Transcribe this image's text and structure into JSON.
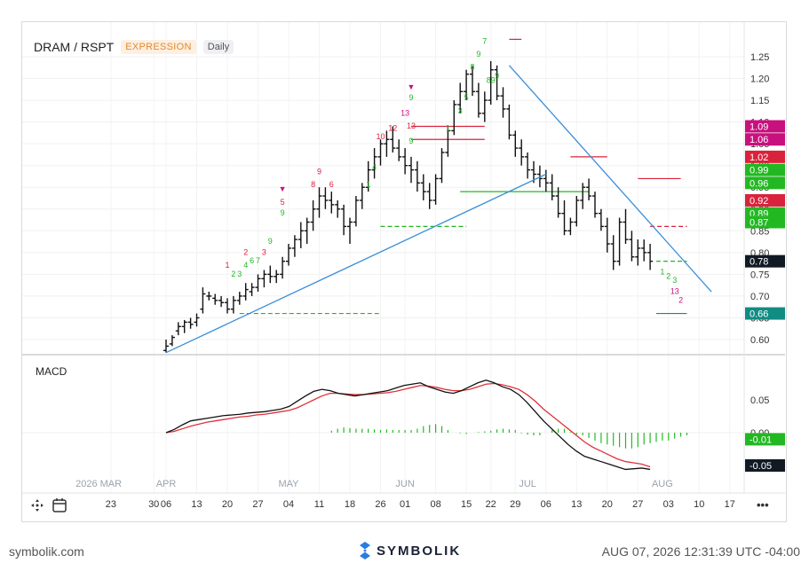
{
  "header": {
    "symbol": "DRAM / RSPT",
    "mode": "EXPRESSION",
    "interval": "Daily"
  },
  "macd_label": "MACD",
  "footer": {
    "site": "symbolik.com",
    "brand": "SYMBOLIK",
    "timestamp": "AUG 07, 2026 12:31:39 UTC -04:00"
  },
  "toolbar": {
    "crosshair_icon": "crosshair-icon",
    "calendar_icon": "calendar-icon",
    "more_icon": "more-icon",
    "more_label": "•••"
  },
  "colors": {
    "up": "#111111",
    "trend": "#3a8fd9",
    "support": "#22aa22",
    "resist": "#dd2244",
    "macd": "#111111",
    "signal": "#e0303a",
    "hist": "#22bb22",
    "label_red": "#d9223c",
    "label_magenta": "#c8107f",
    "label_green": "#22b822",
    "label_dark": "#111a24",
    "label_teal": "#108c82"
  },
  "chart_data": {
    "type": "candlestick",
    "price_axis": {
      "ticks": [
        "1.25",
        "1.20",
        "1.15",
        "1.10",
        "1.05",
        "1.00",
        "0.95",
        "0.90",
        "0.85",
        "0.80",
        "0.75",
        "0.70",
        "0.65",
        "0.60"
      ]
    },
    "price_labels": [
      {
        "text": "1.09",
        "value": 1.09,
        "color": "magenta"
      },
      {
        "text": "1.06",
        "value": 1.06,
        "color": "magenta"
      },
      {
        "text": "1.02",
        "value": 1.02,
        "color": "red"
      },
      {
        "text": "0.99",
        "value": 0.99,
        "color": "green"
      },
      {
        "text": "0.96",
        "value": 0.96,
        "color": "green"
      },
      {
        "text": "0.92",
        "value": 0.92,
        "color": "red"
      },
      {
        "text": "0.89",
        "value": 0.89,
        "color": "green"
      },
      {
        "text": "0.87",
        "value": 0.87,
        "color": "green"
      },
      {
        "text": "0.78",
        "value": 0.78,
        "color": "dark"
      },
      {
        "text": "0.66",
        "value": 0.66,
        "color": "teal"
      }
    ],
    "macd_axis": {
      "ticks": [
        "0.05",
        "0.00"
      ]
    },
    "macd_labels": [
      {
        "text": "-0.01",
        "value": -0.01,
        "color": "green"
      },
      {
        "text": "-0.05",
        "value": -0.05,
        "color": "dark"
      }
    ],
    "time_axis": {
      "months": [
        {
          "label": "2026 MAR",
          "i": -11
        },
        {
          "label": "APR",
          "i": 0
        },
        {
          "label": "MAY",
          "i": 20
        },
        {
          "label": "JUN",
          "i": 39
        },
        {
          "label": "JUL",
          "i": 59
        },
        {
          "label": "AUG",
          "i": 81
        }
      ],
      "days": [
        {
          "label": "23",
          "i": -9
        },
        {
          "label": "30",
          "i": -2
        },
        {
          "label": "06",
          "i": 0
        },
        {
          "label": "13",
          "i": 5
        },
        {
          "label": "20",
          "i": 10
        },
        {
          "label": "27",
          "i": 15
        },
        {
          "label": "04",
          "i": 20
        },
        {
          "label": "11",
          "i": 25
        },
        {
          "label": "18",
          "i": 30
        },
        {
          "label": "26",
          "i": 35
        },
        {
          "label": "01",
          "i": 39
        },
        {
          "label": "08",
          "i": 44
        },
        {
          "label": "15",
          "i": 49
        },
        {
          "label": "22",
          "i": 53
        },
        {
          "label": "29",
          "i": 57
        },
        {
          "label": "06",
          "i": 62
        },
        {
          "label": "13",
          "i": 67
        },
        {
          "label": "20",
          "i": 72
        },
        {
          "label": "27",
          "i": 77
        },
        {
          "label": "03",
          "i": 82
        },
        {
          "label": "10",
          "i": 87
        },
        {
          "label": "17",
          "i": 92
        }
      ]
    },
    "candles": [
      [
        0.575,
        0.6,
        0.57,
        0.585
      ],
      [
        0.59,
        0.61,
        0.585,
        0.605
      ],
      [
        0.62,
        0.64,
        0.61,
        0.63
      ],
      [
        0.63,
        0.645,
        0.615,
        0.64
      ],
      [
        0.64,
        0.65,
        0.625,
        0.635
      ],
      [
        0.64,
        0.66,
        0.63,
        0.65
      ],
      [
        0.67,
        0.72,
        0.66,
        0.705
      ],
      [
        0.7,
        0.71,
        0.69,
        0.7
      ],
      [
        0.695,
        0.705,
        0.68,
        0.69
      ],
      [
        0.69,
        0.7,
        0.675,
        0.685
      ],
      [
        0.685,
        0.695,
        0.66,
        0.67
      ],
      [
        0.67,
        0.7,
        0.66,
        0.69
      ],
      [
        0.69,
        0.71,
        0.68,
        0.7
      ],
      [
        0.7,
        0.73,
        0.69,
        0.715
      ],
      [
        0.71,
        0.73,
        0.7,
        0.72
      ],
      [
        0.72,
        0.75,
        0.71,
        0.74
      ],
      [
        0.74,
        0.76,
        0.72,
        0.75
      ],
      [
        0.75,
        0.77,
        0.73,
        0.745
      ],
      [
        0.745,
        0.76,
        0.73,
        0.75
      ],
      [
        0.75,
        0.79,
        0.74,
        0.78
      ],
      [
        0.78,
        0.82,
        0.77,
        0.81
      ],
      [
        0.81,
        0.84,
        0.79,
        0.83
      ],
      [
        0.83,
        0.87,
        0.81,
        0.85
      ],
      [
        0.85,
        0.88,
        0.82,
        0.87
      ],
      [
        0.87,
        0.92,
        0.85,
        0.9
      ],
      [
        0.9,
        0.95,
        0.88,
        0.93
      ],
      [
        0.93,
        0.95,
        0.9,
        0.92
      ],
      [
        0.92,
        0.94,
        0.89,
        0.91
      ],
      [
        0.91,
        0.92,
        0.88,
        0.9
      ],
      [
        0.9,
        0.91,
        0.84,
        0.86
      ],
      [
        0.86,
        0.88,
        0.82,
        0.87
      ],
      [
        0.87,
        0.93,
        0.86,
        0.92
      ],
      [
        0.92,
        0.96,
        0.9,
        0.95
      ],
      [
        0.95,
        1.01,
        0.94,
        0.99
      ],
      [
        0.99,
        1.04,
        0.97,
        1.02
      ],
      [
        1.02,
        1.06,
        1.0,
        1.05
      ],
      [
        1.05,
        1.08,
        1.02,
        1.06
      ],
      [
        1.06,
        1.09,
        1.03,
        1.04
      ],
      [
        1.04,
        1.06,
        1.01,
        1.02
      ],
      [
        1.02,
        1.04,
        0.98,
        1.0
      ],
      [
        1.0,
        1.02,
        0.96,
        0.99
      ],
      [
        0.99,
        1.01,
        0.94,
        0.96
      ],
      [
        0.96,
        0.98,
        0.92,
        0.94
      ],
      [
        0.94,
        0.96,
        0.9,
        0.92
      ],
      [
        0.92,
        0.98,
        0.91,
        0.97
      ],
      [
        0.97,
        1.04,
        0.96,
        1.03
      ],
      [
        1.03,
        1.09,
        1.02,
        1.08
      ],
      [
        1.08,
        1.15,
        1.07,
        1.14
      ],
      [
        1.14,
        1.19,
        1.12,
        1.17
      ],
      [
        1.17,
        1.22,
        1.15,
        1.21
      ],
      [
        1.21,
        1.23,
        1.16,
        1.17
      ],
      [
        1.17,
        1.19,
        1.11,
        1.12
      ],
      [
        1.12,
        1.17,
        1.1,
        1.15
      ],
      [
        1.15,
        1.24,
        1.14,
        1.22
      ],
      [
        1.22,
        1.23,
        1.15,
        1.16
      ],
      [
        1.16,
        1.18,
        1.11,
        1.13
      ],
      [
        1.13,
        1.14,
        1.06,
        1.07
      ],
      [
        1.07,
        1.08,
        1.02,
        1.04
      ],
      [
        1.04,
        1.06,
        1.0,
        1.02
      ],
      [
        1.02,
        1.03,
        0.97,
        0.99
      ],
      [
        0.99,
        1.01,
        0.96,
        0.98
      ],
      [
        0.98,
        1.0,
        0.95,
        0.97
      ],
      [
        0.97,
        0.99,
        0.94,
        0.96
      ],
      [
        0.96,
        0.98,
        0.92,
        0.93
      ],
      [
        0.93,
        0.95,
        0.88,
        0.89
      ],
      [
        0.89,
        0.92,
        0.84,
        0.85
      ],
      [
        0.85,
        0.88,
        0.84,
        0.87
      ],
      [
        0.87,
        0.93,
        0.86,
        0.92
      ],
      [
        0.92,
        0.96,
        0.9,
        0.95
      ],
      [
        0.95,
        0.97,
        0.92,
        0.93
      ],
      [
        0.93,
        0.94,
        0.88,
        0.89
      ],
      [
        0.89,
        0.9,
        0.85,
        0.86
      ],
      [
        0.86,
        0.88,
        0.8,
        0.82
      ],
      [
        0.82,
        0.84,
        0.76,
        0.78
      ],
      [
        0.78,
        0.88,
        0.77,
        0.87
      ],
      [
        0.87,
        0.9,
        0.82,
        0.83
      ],
      [
        0.83,
        0.85,
        0.78,
        0.79
      ],
      [
        0.79,
        0.83,
        0.77,
        0.81
      ],
      [
        0.81,
        0.83,
        0.78,
        0.8
      ],
      [
        0.8,
        0.82,
        0.76,
        0.78
      ]
    ],
    "trendlines": [
      {
        "name": "support-trend",
        "from": [
          0,
          0.57
        ],
        "to": [
          62,
          0.98
        ],
        "color": "blue"
      },
      {
        "name": "resistance-trend",
        "from": [
          56,
          1.23
        ],
        "to": [
          89,
          0.71
        ],
        "color": "blue"
      }
    ],
    "levels": [
      {
        "value": 0.66,
        "from": 12,
        "to": 35,
        "style": "dashed",
        "color": "green"
      },
      {
        "value": 0.86,
        "from": 35,
        "to": 49,
        "style": "dashed",
        "color": "green"
      },
      {
        "value": 0.94,
        "from": 48,
        "to": 69,
        "style": "solid",
        "color": "green"
      },
      {
        "value": 1.06,
        "from": 40,
        "to": 52,
        "style": "solid",
        "color": "red"
      },
      {
        "value": 1.09,
        "from": 40,
        "to": 52,
        "style": "solid",
        "color": "red"
      },
      {
        "value": 1.02,
        "from": 66,
        "to": 72,
        "style": "solid",
        "color": "red"
      },
      {
        "value": 0.97,
        "from": 77,
        "to": 84,
        "style": "solid",
        "color": "red"
      },
      {
        "value": 0.86,
        "from": 79,
        "to": 85,
        "style": "dashed",
        "color": "red"
      },
      {
        "value": 0.78,
        "from": 80,
        "to": 85,
        "style": "dashed",
        "color": "green"
      },
      {
        "value": 0.66,
        "from": 80,
        "to": 85,
        "style": "solid",
        "color": "teal"
      },
      {
        "value": 1.29,
        "from": 56,
        "to": 58,
        "style": "solid",
        "color": "red"
      }
    ],
    "count_labels": [
      {
        "t": "1",
        "i": 10,
        "v": 0.765,
        "c": "red"
      },
      {
        "t": "2",
        "i": 11,
        "v": 0.745,
        "c": "green"
      },
      {
        "t": "3",
        "i": 12,
        "v": 0.745,
        "c": "green"
      },
      {
        "t": "4",
        "i": 13,
        "v": 0.765,
        "c": "green"
      },
      {
        "t": "2",
        "i": 13,
        "v": 0.795,
        "c": "red"
      },
      {
        "t": "6",
        "i": 14,
        "v": 0.775,
        "c": "green"
      },
      {
        "t": "7",
        "i": 15,
        "v": 0.775,
        "c": "green"
      },
      {
        "t": "3",
        "i": 16,
        "v": 0.795,
        "c": "red"
      },
      {
        "t": "9",
        "i": 17,
        "v": 0.82,
        "c": "green"
      },
      {
        "t": "9",
        "i": 19,
        "v": 0.885,
        "c": "green"
      },
      {
        "t": "5",
        "i": 19,
        "v": 0.91,
        "c": "red"
      },
      {
        "t": "▼",
        "i": 19,
        "v": 0.94,
        "c": "magenta"
      },
      {
        "t": "8",
        "i": 24,
        "v": 0.95,
        "c": "red"
      },
      {
        "t": "9",
        "i": 25,
        "v": 0.98,
        "c": "red"
      },
      {
        "t": "6",
        "i": 27,
        "v": 0.95,
        "c": "red"
      },
      {
        "t": "1",
        "i": 33,
        "v": 0.95,
        "c": "green"
      },
      {
        "t": "4",
        "i": 34,
        "v": 0.99,
        "c": "green"
      },
      {
        "t": "10",
        "i": 35,
        "v": 1.06,
        "c": "red"
      },
      {
        "t": "12",
        "i": 37,
        "v": 1.08,
        "c": "red"
      },
      {
        "t": "13",
        "i": 39,
        "v": 1.115,
        "c": "magenta"
      },
      {
        "t": "9",
        "i": 40,
        "v": 1.15,
        "c": "green"
      },
      {
        "t": "▼",
        "i": 40,
        "v": 1.175,
        "c": "magenta"
      },
      {
        "t": "13",
        "i": 40,
        "v": 1.085,
        "c": "red"
      },
      {
        "t": "9",
        "i": 40,
        "v": 1.05,
        "c": "green"
      },
      {
        "t": "1",
        "i": 46,
        "v": 1.08,
        "c": "green"
      },
      {
        "t": "3",
        "i": 48,
        "v": 1.12,
        "c": "green"
      },
      {
        "t": "5",
        "i": 49,
        "v": 1.15,
        "c": "green"
      },
      {
        "t": "8",
        "i": 50,
        "v": 1.22,
        "c": "green"
      },
      {
        "t": "9",
        "i": 51,
        "v": 1.25,
        "c": "green"
      },
      {
        "t": "7",
        "i": 52,
        "v": 1.28,
        "c": "green"
      },
      {
        "t": "89",
        "i": 53,
        "v": 1.19,
        "c": "green"
      },
      {
        "t": "9",
        "i": 54,
        "v": 1.2,
        "c": "green"
      },
      {
        "t": "1",
        "i": 81,
        "v": 0.75,
        "c": "green"
      },
      {
        "t": "2",
        "i": 82,
        "v": 0.74,
        "c": "green"
      },
      {
        "t": "3",
        "i": 83,
        "v": 0.73,
        "c": "green"
      },
      {
        "t": "13",
        "i": 83,
        "v": 0.705,
        "c": "magenta"
      },
      {
        "t": "2",
        "i": 84,
        "v": 0.685,
        "c": "magenta"
      }
    ],
    "macd": {
      "ylim": [
        -0.06,
        0.11
      ],
      "macd_line": [
        0.0,
        0.005,
        0.012,
        0.018,
        0.02,
        0.022,
        0.024,
        0.026,
        0.027,
        0.028,
        0.03,
        0.031,
        0.032,
        0.034,
        0.036,
        0.04,
        0.048,
        0.056,
        0.063,
        0.066,
        0.064,
        0.06,
        0.058,
        0.056,
        0.058,
        0.06,
        0.062,
        0.064,
        0.068,
        0.072,
        0.074,
        0.076,
        0.07,
        0.066,
        0.062,
        0.06,
        0.064,
        0.07,
        0.076,
        0.08,
        0.076,
        0.07,
        0.066,
        0.058,
        0.046,
        0.032,
        0.018,
        0.006,
        -0.006,
        -0.018,
        -0.028,
        -0.036,
        -0.04,
        -0.044,
        -0.048,
        -0.052,
        -0.056,
        -0.055,
        -0.054,
        -0.056
      ],
      "signal_line": [
        0.0,
        0.002,
        0.006,
        0.01,
        0.013,
        0.016,
        0.018,
        0.02,
        0.022,
        0.024,
        0.025,
        0.027,
        0.028,
        0.03,
        0.032,
        0.034,
        0.038,
        0.044,
        0.05,
        0.056,
        0.06,
        0.06,
        0.059,
        0.058,
        0.058,
        0.059,
        0.06,
        0.061,
        0.063,
        0.066,
        0.069,
        0.072,
        0.071,
        0.069,
        0.066,
        0.064,
        0.064,
        0.066,
        0.07,
        0.074,
        0.075,
        0.073,
        0.07,
        0.066,
        0.058,
        0.048,
        0.036,
        0.026,
        0.016,
        0.006,
        -0.004,
        -0.014,
        -0.022,
        -0.028,
        -0.034,
        -0.04,
        -0.044,
        -0.046,
        -0.048,
        -0.052
      ],
      "histogram": [
        0.0,
        0.003,
        0.006,
        0.008,
        0.007,
        0.006,
        0.006,
        0.006,
        0.005,
        0.004,
        0.005,
        0.004,
        0.004,
        0.004,
        0.004,
        0.006,
        0.01,
        0.012,
        0.013,
        0.01,
        0.004,
        0.0,
        -0.001,
        -0.002,
        0.0,
        0.001,
        0.002,
        0.003,
        0.005,
        0.006,
        0.005,
        0.004,
        -0.001,
        -0.003,
        -0.004,
        -0.004,
        0.0,
        0.004,
        0.006,
        0.006,
        0.001,
        -0.003,
        -0.004,
        -0.008,
        -0.012,
        -0.016,
        -0.018,
        -0.02,
        -0.022,
        -0.024,
        -0.024,
        -0.022,
        -0.018,
        -0.016,
        -0.014,
        -0.012,
        -0.012,
        -0.009,
        -0.006,
        -0.004
      ]
    }
  }
}
